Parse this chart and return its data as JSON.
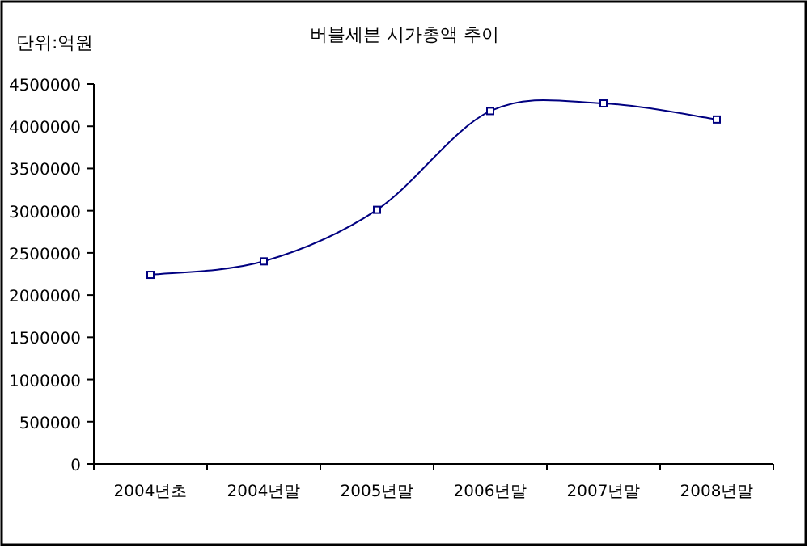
{
  "chart_data": {
    "type": "line",
    "title": "버블세븐 시가총액 추이",
    "ylabel": "단위:억원",
    "categories": [
      "2004년초",
      "2004년말",
      "2005년말",
      "2006년말",
      "2007년말",
      "2008년말"
    ],
    "values": [
      2240000,
      2400000,
      3010000,
      4180000,
      4270000,
      4080000
    ],
    "color": "#000080",
    "marker": "square",
    "line_style": "solid",
    "ylim": [
      0,
      4500000
    ],
    "yticks": [
      0,
      500000,
      1000000,
      1500000,
      2000000,
      2500000,
      3000000,
      3500000,
      4000000,
      4500000
    ]
  }
}
